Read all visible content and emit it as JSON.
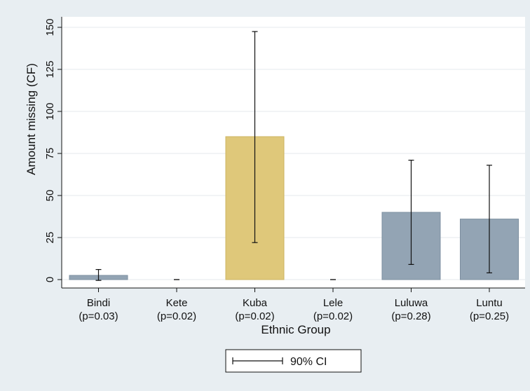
{
  "chart_data": {
    "type": "bar",
    "xlabel": "Ethnic Group",
    "ylabel": "Amount missing (CF)",
    "ylim": [
      0,
      150
    ],
    "yticks": [
      0,
      25,
      50,
      75,
      100,
      125,
      150
    ],
    "grid": true,
    "categories": [
      {
        "name": "Bindi",
        "p": "(p=0.03)"
      },
      {
        "name": "Kete",
        "p": "(p=0.02)"
      },
      {
        "name": "Kuba",
        "p": "(p=0.02)"
      },
      {
        "name": "Lele",
        "p": "(p=0.02)"
      },
      {
        "name": "Luluwa",
        "p": "(p=0.28)"
      },
      {
        "name": "Luntu",
        "p": "(p=0.25)"
      }
    ],
    "values": [
      2.5,
      0,
      85,
      0,
      40,
      36
    ],
    "ci_low": [
      -0.5,
      0,
      22,
      0,
      9,
      4
    ],
    "ci_high": [
      6,
      0,
      147.5,
      0,
      71,
      68
    ],
    "highlight_index": 2,
    "colors": {
      "bar": "#93a4b4",
      "bar_edge": "#7e8fa0",
      "highlight": "#dfc87a",
      "highlight_edge": "#cdb462",
      "plot_bg": "#ffffff",
      "page_bg": "#e8eef2",
      "grid": "#e6eaee",
      "axis": "#111111"
    },
    "legend": {
      "label": "90% CI",
      "position": "bottom-center"
    }
  }
}
